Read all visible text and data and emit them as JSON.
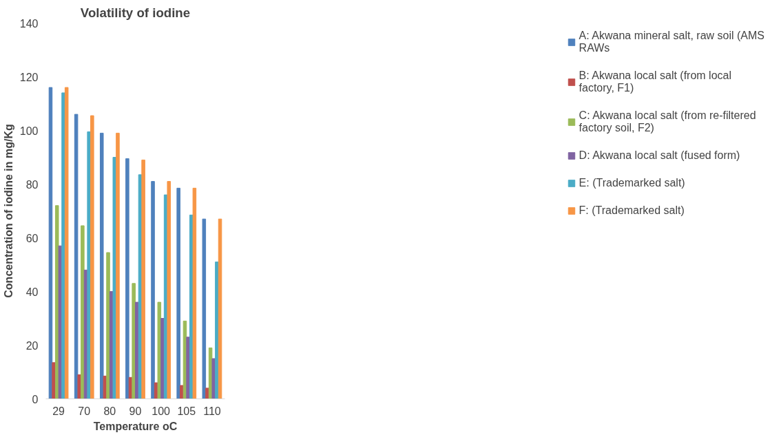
{
  "chart_data": {
    "type": "bar",
    "title": "Volatility of iodine",
    "xlabel": "Temperature oC",
    "ylabel": "Concentration of iodine in mg/Kg",
    "categories": [
      "29",
      "70",
      "80",
      "90",
      "100",
      "105",
      "110"
    ],
    "series": [
      {
        "name": "A: Akwana mineral salt, raw soil (AMS RAWs",
        "color": "#4f81bd",
        "values": [
          116,
          106,
          99,
          89.5,
          81,
          78.5,
          67
        ]
      },
      {
        "name": "B: Akwana local salt (from local factory, F1)",
        "color": "#c0504d",
        "values": [
          13.5,
          9,
          8.5,
          8,
          6,
          5,
          4
        ]
      },
      {
        "name": "C: Akwana local salt (from re-filtered factory soil, F2)",
        "color": "#9bbb59",
        "values": [
          72,
          64.5,
          54.5,
          43,
          36,
          29,
          19
        ]
      },
      {
        "name": "D: Akwana local salt (fused form)",
        "color": "#8064a2",
        "values": [
          57,
          48,
          40,
          36,
          30,
          23,
          15
        ]
      },
      {
        "name": "E: (Trademarked salt)",
        "color": "#4bacc6",
        "values": [
          114,
          99.5,
          90,
          83.5,
          76,
          68.5,
          51
        ]
      },
      {
        "name": "F: (Trademarked salt)",
        "color": "#f79646",
        "values": [
          116,
          105.5,
          99,
          89,
          81,
          78.5,
          67
        ]
      }
    ],
    "ylim": [
      0,
      140
    ],
    "yticks": [
      0,
      20,
      40,
      60,
      80,
      100,
      120,
      140
    ],
    "grid": false,
    "legend": "right"
  }
}
